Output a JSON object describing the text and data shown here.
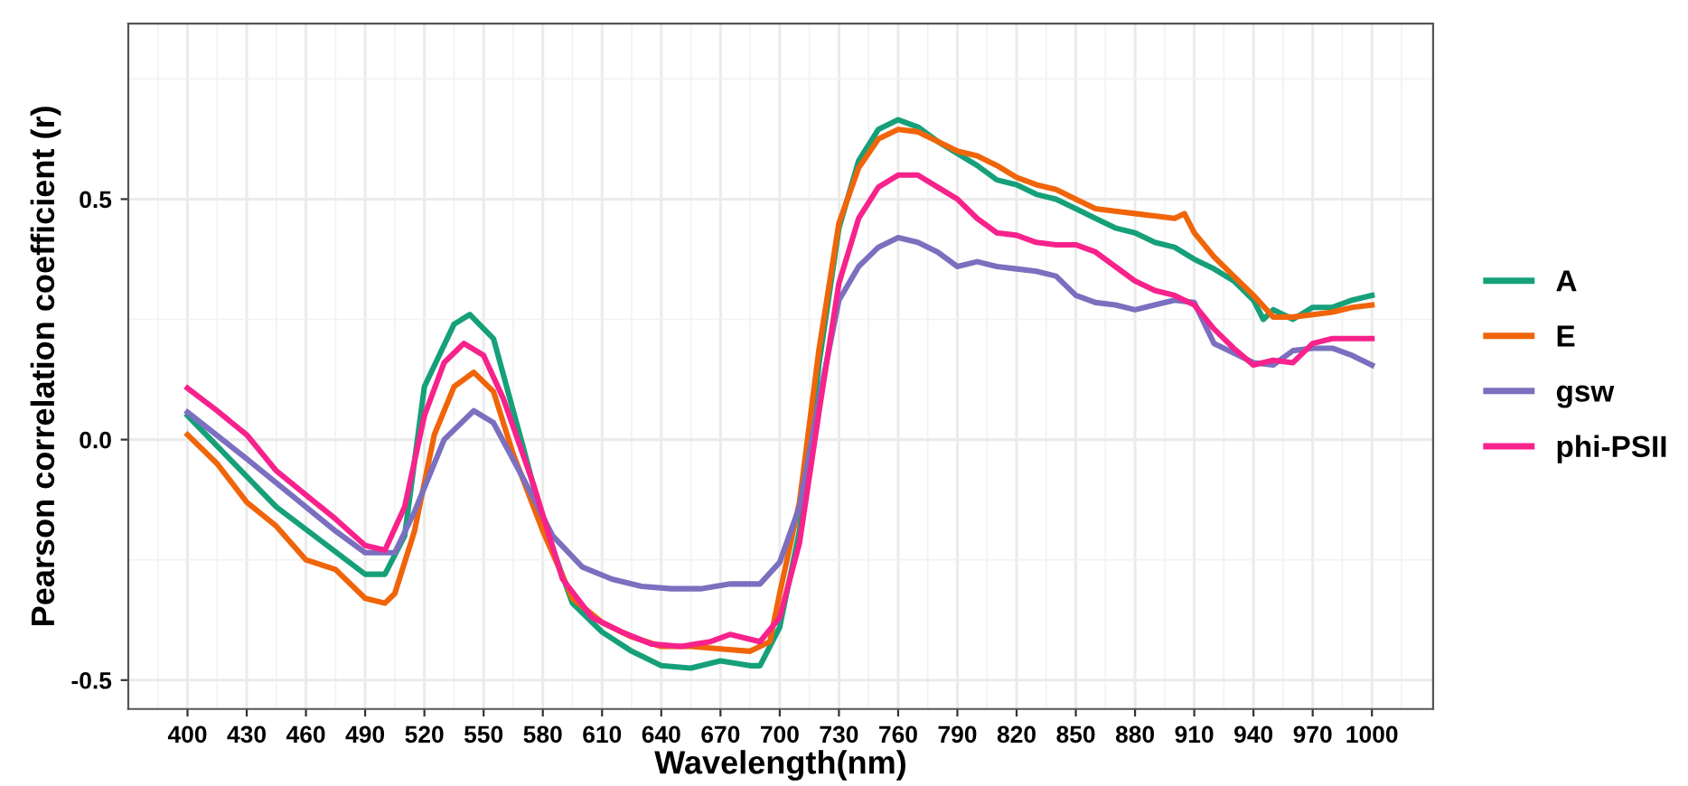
{
  "chart_data": {
    "type": "line",
    "xlabel": "Wavelength(nm)",
    "ylabel": "Pearson correlation coefficient (r)",
    "xlim": [
      370,
      1031
    ],
    "ylim": [
      -0.56,
      0.865
    ],
    "xticks": [
      400,
      430,
      460,
      490,
      520,
      550,
      580,
      610,
      640,
      670,
      700,
      730,
      760,
      790,
      820,
      850,
      880,
      910,
      940,
      970,
      1000
    ],
    "yticks": [
      {
        "value": -0.5,
        "label": "-0.5"
      },
      {
        "value": 0,
        "label": "0.0"
      },
      {
        "value": 0.5,
        "label": "0.5"
      }
    ],
    "grid": true,
    "legend": "right",
    "marker": "none",
    "line_style": "solid",
    "series": [
      {
        "name": "A",
        "color": "#16a07a",
        "x": [
          400,
          445,
          490,
          500,
          510,
          520,
          535,
          543,
          555,
          570,
          580,
          595,
          610,
          625,
          640,
          655,
          670,
          685,
          690,
          700,
          710,
          720,
          730,
          740,
          750,
          760,
          770,
          780,
          790,
          800,
          810,
          820,
          830,
          840,
          850,
          860,
          870,
          880,
          890,
          900,
          910,
          920,
          930,
          940,
          945,
          950,
          960,
          970,
          980,
          990,
          1000
        ],
        "values": [
          0.05,
          -0.14,
          -0.28,
          -0.28,
          -0.2,
          0.11,
          0.24,
          0.26,
          0.21,
          -0.015,
          -0.17,
          -0.34,
          -0.4,
          -0.44,
          -0.47,
          -0.475,
          -0.46,
          -0.47,
          -0.47,
          -0.39,
          -0.19,
          0.16,
          0.44,
          0.58,
          0.645,
          0.665,
          0.65,
          0.62,
          0.595,
          0.57,
          0.54,
          0.53,
          0.51,
          0.5,
          0.48,
          0.46,
          0.44,
          0.43,
          0.41,
          0.4,
          0.375,
          0.355,
          0.33,
          0.29,
          0.25,
          0.27,
          0.25,
          0.275,
          0.275,
          0.29,
          0.3
        ]
      },
      {
        "name": "E",
        "color": "#f0650a",
        "x": [
          400,
          415,
          430,
          445,
          460,
          475,
          490,
          500,
          505,
          515,
          525,
          535,
          545,
          555,
          565,
          580,
          595,
          610,
          625,
          640,
          655,
          670,
          685,
          695,
          700,
          710,
          720,
          730,
          740,
          750,
          760,
          770,
          780,
          790,
          800,
          810,
          820,
          830,
          840,
          850,
          860,
          870,
          880,
          890,
          900,
          905,
          910,
          920,
          930,
          940,
          950,
          960,
          970,
          980,
          990,
          1000
        ],
        "values": [
          0.01,
          -0.05,
          -0.13,
          -0.18,
          -0.25,
          -0.27,
          -0.33,
          -0.34,
          -0.32,
          -0.19,
          0.01,
          0.11,
          0.14,
          0.1,
          -0.03,
          -0.19,
          -0.33,
          -0.38,
          -0.41,
          -0.43,
          -0.43,
          -0.435,
          -0.44,
          -0.42,
          -0.32,
          -0.13,
          0.19,
          0.45,
          0.565,
          0.625,
          0.645,
          0.64,
          0.62,
          0.6,
          0.59,
          0.57,
          0.545,
          0.53,
          0.52,
          0.5,
          0.48,
          0.475,
          0.47,
          0.465,
          0.46,
          0.47,
          0.43,
          0.38,
          0.34,
          0.3,
          0.255,
          0.255,
          0.26,
          0.265,
          0.275,
          0.28
        ]
      },
      {
        "name": "gsw",
        "color": "#7b6fbf",
        "x": [
          400,
          430,
          460,
          475,
          490,
          505,
          515,
          530,
          545,
          555,
          570,
          585,
          600,
          615,
          630,
          645,
          660,
          675,
          690,
          700,
          710,
          720,
          730,
          740,
          750,
          760,
          770,
          780,
          790,
          800,
          810,
          820,
          830,
          840,
          850,
          860,
          870,
          880,
          890,
          900,
          910,
          920,
          930,
          940,
          950,
          960,
          970,
          980,
          990,
          1000
        ],
        "values": [
          0.057,
          -0.04,
          -0.14,
          -0.19,
          -0.235,
          -0.235,
          -0.15,
          0,
          0.06,
          0.035,
          -0.08,
          -0.2,
          -0.265,
          -0.29,
          -0.305,
          -0.31,
          -0.31,
          -0.3,
          -0.3,
          -0.255,
          -0.14,
          0.085,
          0.29,
          0.36,
          0.4,
          0.42,
          0.41,
          0.39,
          0.36,
          0.37,
          0.36,
          0.355,
          0.35,
          0.34,
          0.3,
          0.285,
          0.28,
          0.27,
          0.28,
          0.29,
          0.285,
          0.2,
          0.18,
          0.16,
          0.155,
          0.185,
          0.19,
          0.19,
          0.175,
          0.155
        ]
      },
      {
        "name": "phi-PSII",
        "color": "#f7228c",
        "x": [
          400,
          415,
          430,
          445,
          460,
          475,
          490,
          500,
          510,
          520,
          530,
          540,
          550,
          560,
          575,
          590,
          605,
          620,
          635,
          650,
          665,
          675,
          690,
          700,
          710,
          720,
          730,
          740,
          750,
          760,
          770,
          780,
          790,
          800,
          810,
          820,
          830,
          840,
          850,
          860,
          870,
          880,
          890,
          900,
          910,
          920,
          930,
          940,
          950,
          960,
          970,
          980,
          990,
          1000
        ],
        "values": [
          0.107,
          0.06,
          0.01,
          -0.065,
          -0.115,
          -0.165,
          -0.22,
          -0.23,
          -0.14,
          0.05,
          0.16,
          0.2,
          0.175,
          0.085,
          -0.09,
          -0.29,
          -0.37,
          -0.4,
          -0.425,
          -0.43,
          -0.42,
          -0.405,
          -0.42,
          -0.37,
          -0.215,
          0.06,
          0.325,
          0.46,
          0.525,
          0.55,
          0.55,
          0.525,
          0.5,
          0.46,
          0.43,
          0.425,
          0.41,
          0.405,
          0.405,
          0.39,
          0.36,
          0.33,
          0.31,
          0.3,
          0.28,
          0.23,
          0.19,
          0.155,
          0.165,
          0.16,
          0.2,
          0.21,
          0.21,
          0.21
        ]
      }
    ]
  }
}
